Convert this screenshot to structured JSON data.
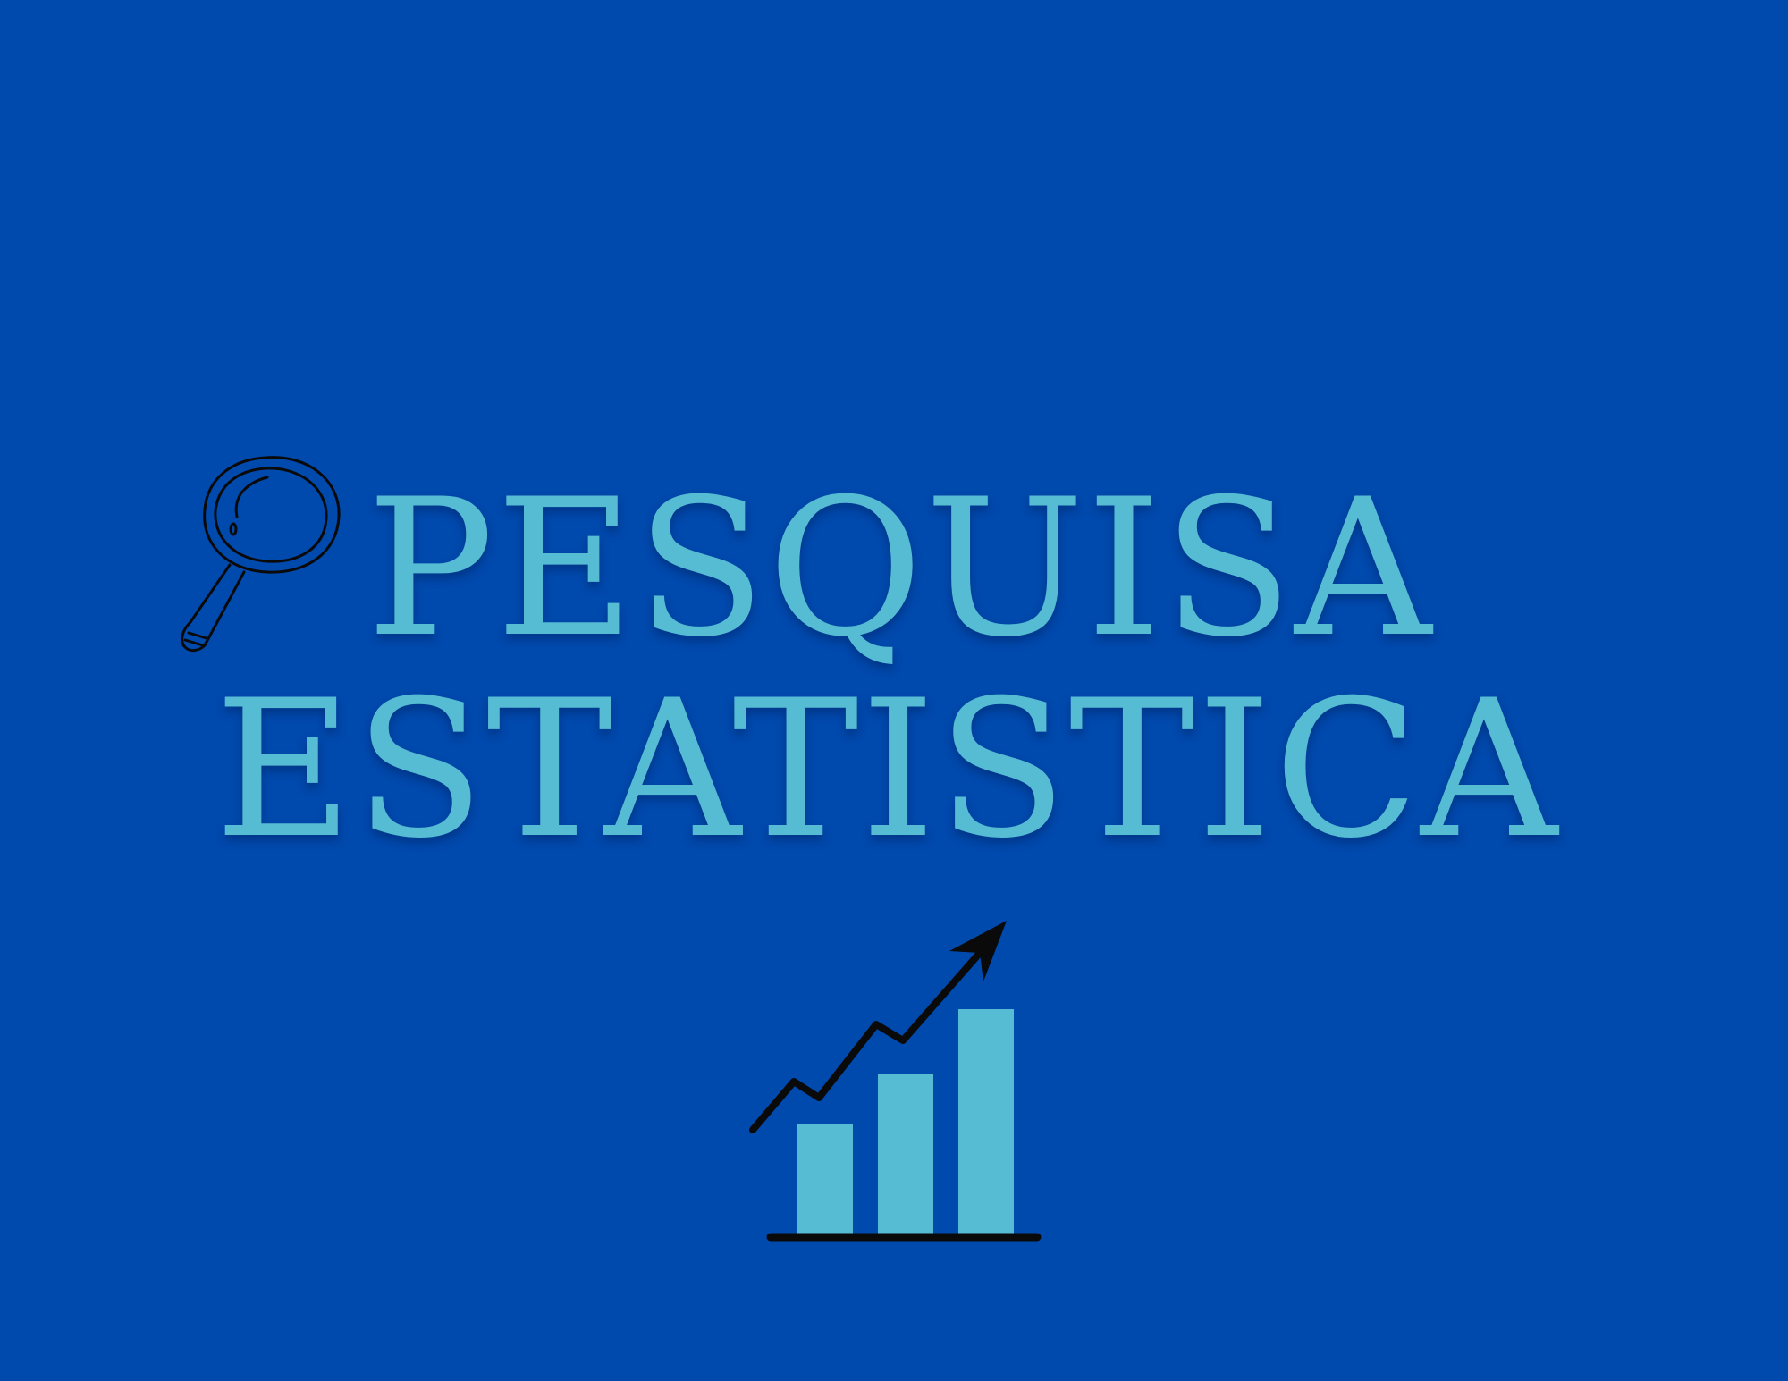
{
  "background_color": "#0049ad",
  "accent_color": "#56bcd4",
  "title": {
    "line1": "PESQUISA",
    "line2": "ESTATISTICA"
  },
  "icons": {
    "magnifier": "magnifier-icon",
    "growth_chart": "growth-chart-icon"
  },
  "growth_chart": {
    "bar_levels": [
      0.48,
      0.7,
      0.98
    ]
  }
}
